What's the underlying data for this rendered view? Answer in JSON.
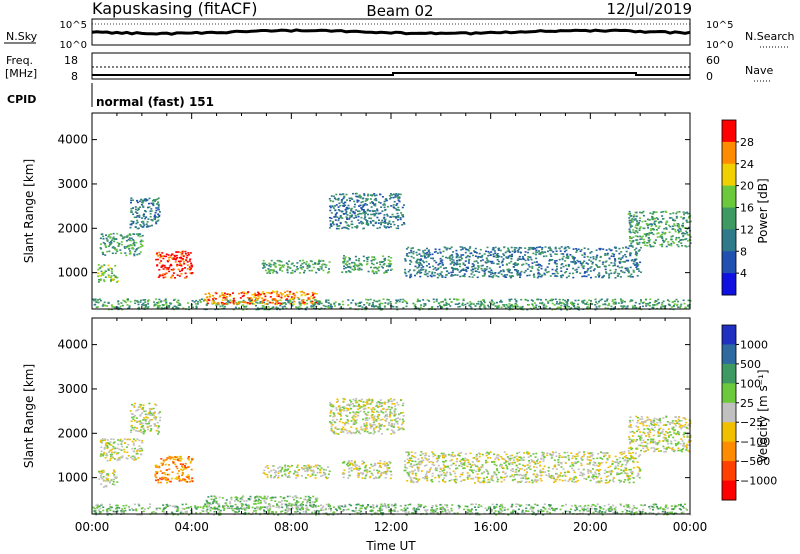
{
  "header": {
    "station": "Kapuskasing (fitACF)",
    "beam": "Beam 02",
    "date": "12/Jul/2019"
  },
  "top_panels": {
    "nsky_label": "N.Sky",
    "nsky_ticks": [
      "10^5",
      "10^0"
    ],
    "nsearch_label": "N.Search",
    "nsearch_ticks": [
      "10^5",
      "10^0"
    ],
    "freq_label": "Freq.",
    "freq_unit": "[MHz]",
    "freq_ticks": [
      "18",
      "8"
    ],
    "nave_label": "Nave",
    "nave_ticks": [
      "60",
      "0"
    ],
    "cpid_label": "CPID",
    "cpid_value": "normal (fast) 151"
  },
  "chart_data": [
    {
      "type": "heatmap",
      "name": "power-panel",
      "ylabel": "Slant Range [km]",
      "ylim": [
        180,
        4600
      ],
      "yticks": [
        "1000",
        "2000",
        "3000",
        "4000"
      ],
      "xlim_hours": [
        0,
        24
      ],
      "colorbar": {
        "label": "Power [dB]",
        "ticks": [
          "4",
          "8",
          "12",
          "16",
          "20",
          "24",
          "28"
        ],
        "colors": [
          "#1010e0",
          "#2050b0",
          "#2e7a8a",
          "#3f9a62",
          "#6cc83c",
          "#f0d000",
          "#ff8c00",
          "#ff0000"
        ]
      },
      "regions": [
        {
          "t0": 0.0,
          "t1": 24.0,
          "r0": 180,
          "r1": 420,
          "level": 3
        },
        {
          "t0": 4.5,
          "t1": 9.0,
          "r0": 300,
          "r1": 600,
          "level": 6
        },
        {
          "t0": 2.5,
          "t1": 4.0,
          "r0": 900,
          "r1": 1500,
          "level": 7
        },
        {
          "t0": 0.3,
          "t1": 2.0,
          "r0": 1400,
          "r1": 1900,
          "level": 3
        },
        {
          "t0": 0.2,
          "t1": 1.0,
          "r0": 800,
          "r1": 1200,
          "level": 4
        },
        {
          "t0": 1.5,
          "t1": 2.7,
          "r0": 2000,
          "r1": 2700,
          "level": 2
        },
        {
          "t0": 6.8,
          "t1": 9.5,
          "r0": 1000,
          "r1": 1300,
          "level": 3
        },
        {
          "t0": 10.0,
          "t1": 12.0,
          "r0": 1000,
          "r1": 1400,
          "level": 3
        },
        {
          "t0": 12.5,
          "t1": 22.0,
          "r0": 900,
          "r1": 1600,
          "level": 2
        },
        {
          "t0": 21.5,
          "t1": 24.0,
          "r0": 1600,
          "r1": 2400,
          "level": 3
        },
        {
          "t0": 9.5,
          "t1": 12.5,
          "r0": 2000,
          "r1": 2800,
          "level": 2
        }
      ]
    },
    {
      "type": "heatmap",
      "name": "velocity-panel",
      "ylabel": "Slant Range [km]",
      "ylim": [
        180,
        4600
      ],
      "yticks": [
        "1000",
        "2000",
        "3000",
        "4000"
      ],
      "xlim_hours": [
        0,
        24
      ],
      "xticks": [
        "00:00",
        "04:00",
        "08:00",
        "12:00",
        "16:00",
        "20:00",
        "00:00"
      ],
      "xlabel": "Time UT",
      "colorbar": {
        "label": "Velocity [m s⁻¹]",
        "ticks": [
          "1000",
          "500",
          "100",
          "25",
          "−25",
          "−100",
          "−500",
          "−1000"
        ],
        "colors": [
          "#2030c0",
          "#2e6aa0",
          "#3f9a62",
          "#6cc83c",
          "#c0c0c0",
          "#f0c000",
          "#ff8c00",
          "#ff4000",
          "#ff0000"
        ]
      },
      "regions": [
        {
          "t0": 0.0,
          "t1": 24.0,
          "r0": 180,
          "r1": 420,
          "level": 3
        },
        {
          "t0": 4.5,
          "t1": 9.0,
          "r0": 300,
          "r1": 600,
          "level": 3
        },
        {
          "t0": 2.5,
          "t1": 4.0,
          "r0": 900,
          "r1": 1500,
          "level": 6
        },
        {
          "t0": 0.3,
          "t1": 2.0,
          "r0": 1400,
          "r1": 1900,
          "level": 4
        },
        {
          "t0": 0.2,
          "t1": 1.0,
          "r0": 800,
          "r1": 1200,
          "level": 4
        },
        {
          "t0": 1.5,
          "t1": 2.7,
          "r0": 2000,
          "r1": 2700,
          "level": 4
        },
        {
          "t0": 6.8,
          "t1": 9.5,
          "r0": 1000,
          "r1": 1300,
          "level": 4
        },
        {
          "t0": 10.0,
          "t1": 12.0,
          "r0": 1000,
          "r1": 1400,
          "level": 4
        },
        {
          "t0": 12.5,
          "t1": 22.0,
          "r0": 900,
          "r1": 1600,
          "level": 4
        },
        {
          "t0": 21.5,
          "t1": 24.0,
          "r0": 1600,
          "r1": 2400,
          "level": 4
        },
        {
          "t0": 9.5,
          "t1": 12.5,
          "r0": 2000,
          "r1": 2800,
          "level": 4
        }
      ]
    }
  ]
}
